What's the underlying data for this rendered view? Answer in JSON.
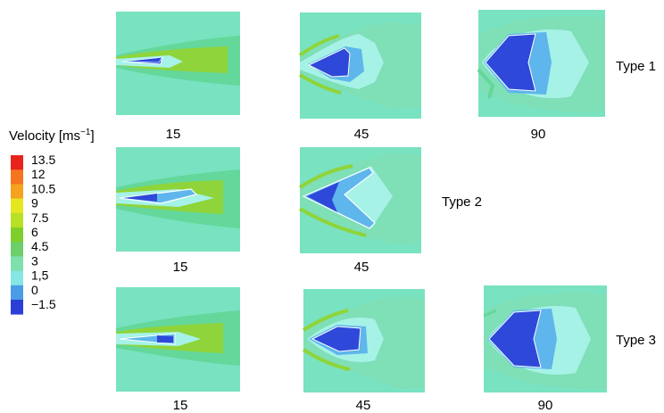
{
  "legend": {
    "title": "Velocity [ms",
    "title_sup": "−1",
    "title_end": "]",
    "levels": [
      {
        "label": "13.5",
        "color": "#e8231c"
      },
      {
        "label": "12",
        "color": "#f5751f"
      },
      {
        "label": "10.5",
        "color": "#f5a21e"
      },
      {
        "label": "9",
        "color": "#e6e81f"
      },
      {
        "label": "7.5",
        "color": "#b8e024"
      },
      {
        "label": "6",
        "color": "#7fcf2c"
      },
      {
        "label": "4.5",
        "color": "#6ccf6a"
      },
      {
        "label": "3",
        "color": "#7fe0ae"
      },
      {
        "label": "1,5",
        "color": "#86e6e4"
      },
      {
        "label": "0",
        "color": "#4b9ce6"
      },
      {
        "label": "−1.5",
        "color": "#2b3fd6"
      }
    ]
  },
  "colors": {
    "background_flow": "#79e2c0",
    "low_flow": "#a6f2e6",
    "mid_flow": "#64d79a",
    "high_flow": "#8fd43a",
    "reverse_flow": "#2e49d9",
    "near_zero": "#5eb6ec"
  },
  "rows": [
    {
      "type_label": "Type 1",
      "panels": [
        {
          "angle": "15"
        },
        {
          "angle": "45"
        },
        {
          "angle": "90"
        }
      ]
    },
    {
      "type_label": "Type 2",
      "panels": [
        {
          "angle": "15"
        },
        {
          "angle": "45"
        }
      ]
    },
    {
      "type_label": "Type 3",
      "panels": [
        {
          "angle": "15"
        },
        {
          "angle": "45"
        },
        {
          "angle": "90"
        }
      ]
    }
  ]
}
